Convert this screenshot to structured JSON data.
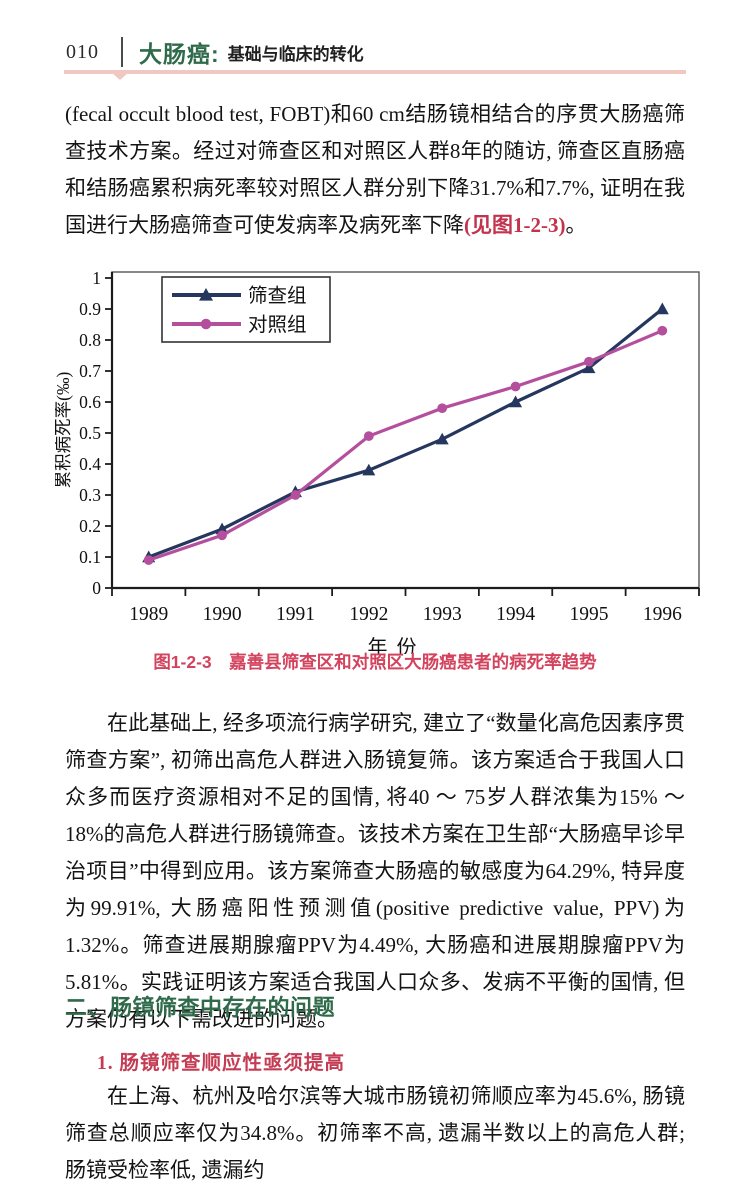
{
  "header": {
    "page_number": "010",
    "book_title": "大肠癌:",
    "book_subtitle": "基础与临床的转化"
  },
  "paragraph1": {
    "text_before": "(fecal occult blood test, FOBT)和60 cm结肠镜相结合的序贯大肠癌筛查技术方案。经过对筛查区和对照区人群8年的随访, 筛查区直肠癌和结肠癌累积病死率较对照区人群分别下降31.7%和7.7%, 证明在我国进行大肠癌筛查可使发病率及病死率下降",
    "figure_ref": "(见图1-2-3)",
    "text_after": "。"
  },
  "chart_data": {
    "type": "line",
    "title": "",
    "x": [
      "1989",
      "1990",
      "1991",
      "1992",
      "1993",
      "1994",
      "1995",
      "1996"
    ],
    "series": [
      {
        "name": "筛查组",
        "marker": "triangle",
        "color": "#25375f",
        "values": [
          0.1,
          0.19,
          0.31,
          0.38,
          0.48,
          0.6,
          0.71,
          0.9
        ]
      },
      {
        "name": "对照组",
        "marker": "circle",
        "color": "#b44f9e",
        "values": [
          0.09,
          0.17,
          0.3,
          0.49,
          0.58,
          0.65,
          0.73,
          0.83
        ]
      }
    ],
    "xlabel": "年份",
    "ylabel": "累积病死率(‰)",
    "ylim": [
      0,
      1
    ],
    "yticks": [
      "0",
      "0.1",
      "0.2",
      "0.3",
      "0.4",
      "0.5",
      "0.6",
      "0.7",
      "0.8",
      "0.9",
      "1"
    ],
    "grid": "off",
    "legend_position": "top-left"
  },
  "figure_caption": "图1-2-3　嘉善县筛查区和对照区大肠癌患者的病死率趋势",
  "paragraph2": "在此基础上, 经多项流行病学研究, 建立了“数量化高危因素序贯筛查方案”, 初筛出高危人群进入肠镜复筛。该方案适合于我国人口众多而医疗资源相对不足的国情, 将40 ～ 75岁人群浓集为15% ～ 18%的高危人群进行肠镜筛查。该技术方案在卫生部“大肠癌早诊早治项目”中得到应用。该方案筛查大肠癌的敏感度为64.29%, 特异度为99.91%, 大肠癌阳性预测值(positive predictive value, PPV)为1.32%。筛查进展期腺瘤PPV为4.49%, 大肠癌和进展期腺瘤PPV为5.81%。实践证明该方案适合我国人口众多、发病不平衡的国情, 但方案仍有以下需改进的问题。",
  "section2": {
    "heading": "二、肠镜筛查中存在的问题",
    "sub1_heading": "1. 肠镜筛查顺应性亟须提高",
    "sub1_text": "在上海、杭州及哈尔滨等大城市肠镜初筛顺应率为45.6%, 肠镜筛查总顺应率仅为34.8%。初筛率不高, 遗漏半数以上的高危人群; 肠镜受检率低, 遗漏约"
  },
  "colors": {
    "heading_green": "#2f6a4b",
    "caption_red": "#d4435e",
    "figure_ref_red": "#c2334d",
    "sub_heading_red": "#c43c54",
    "header_rule_pink": "#f1c7c1",
    "series_screening_navy": "#25375f",
    "series_control_magenta": "#b44f9e",
    "axis_black": "#1c1c1c"
  }
}
